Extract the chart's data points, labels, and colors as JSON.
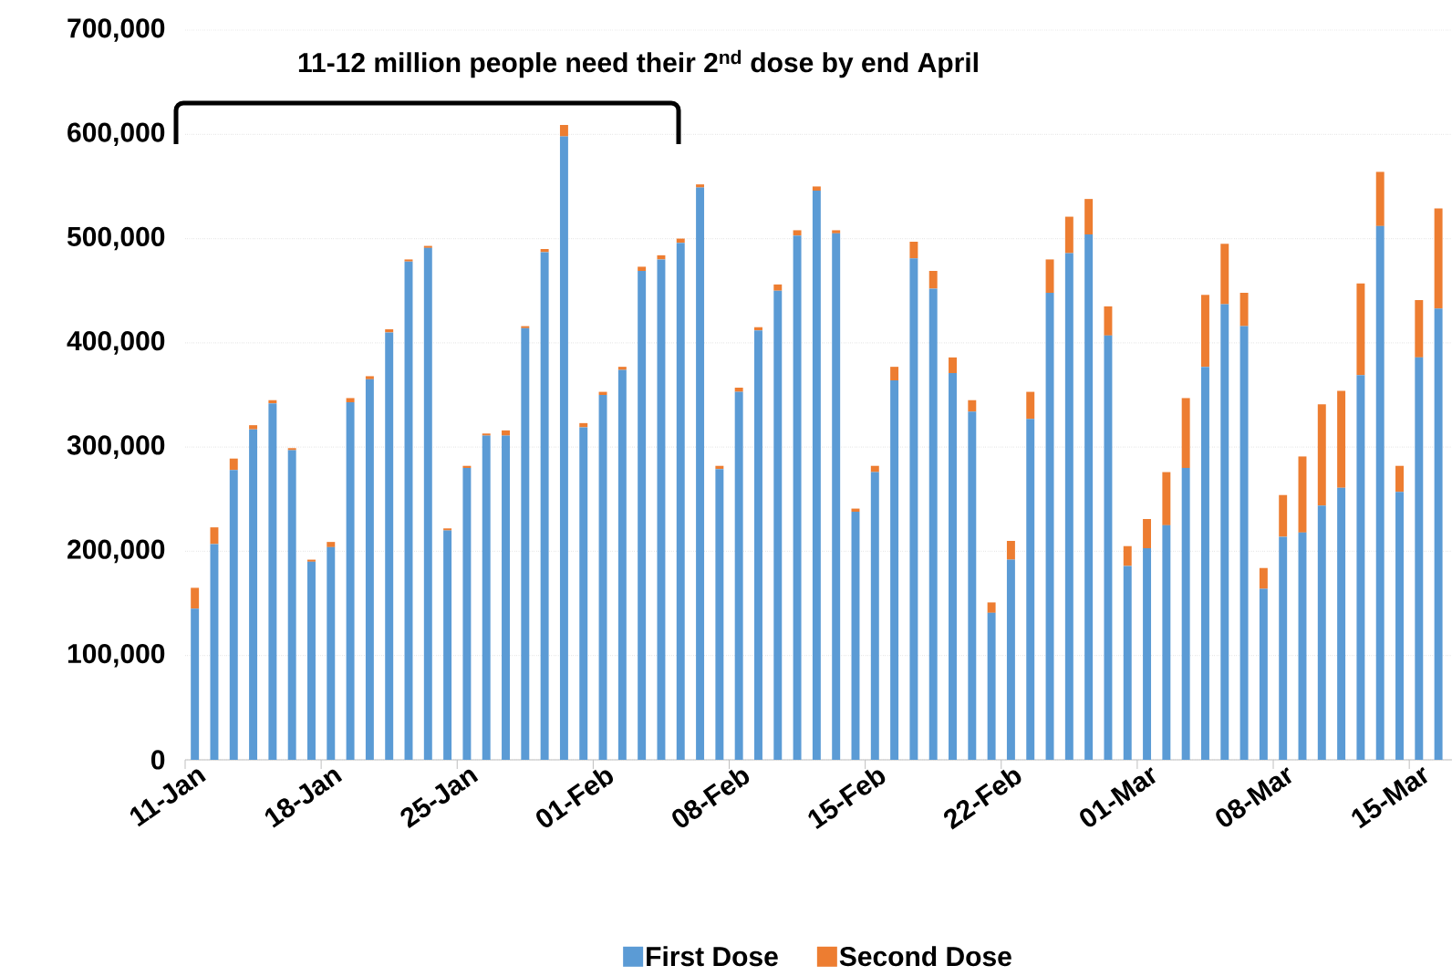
{
  "chart_data": {
    "type": "bar",
    "stacked": true,
    "categories": [
      "11-Jan",
      null,
      null,
      null,
      null,
      null,
      null,
      "18-Jan",
      null,
      null,
      null,
      null,
      null,
      null,
      "25-Jan",
      null,
      null,
      null,
      null,
      null,
      null,
      "01-Feb",
      null,
      null,
      null,
      null,
      null,
      null,
      "08-Feb",
      null,
      null,
      null,
      null,
      null,
      null,
      "15-Feb",
      null,
      null,
      null,
      null,
      null,
      null,
      "22-Feb",
      null,
      null,
      null,
      null,
      null,
      null,
      "01-Mar",
      null,
      null,
      null,
      null,
      null,
      null,
      "08-Mar",
      null,
      null,
      null,
      null,
      null,
      null,
      "15-Mar",
      null
    ],
    "series": [
      {
        "name": "First Dose",
        "color": "#5b9bd5",
        "values": [
          145000,
          207000,
          278000,
          317000,
          342000,
          297000,
          190000,
          204000,
          343000,
          365000,
          410000,
          478000,
          491000,
          220000,
          280000,
          311000,
          311000,
          414000,
          487000,
          598000,
          319000,
          350000,
          374000,
          469000,
          480000,
          496000,
          549000,
          279000,
          353000,
          412000,
          450000,
          503000,
          546000,
          505000,
          238000,
          276000,
          364000,
          481000,
          452000,
          371000,
          334000,
          141000,
          192000,
          327000,
          448000,
          486000,
          504000,
          407000,
          186000,
          203000,
          225000,
          280000,
          377000,
          437000,
          416000,
          164000,
          214000,
          218000,
          244000,
          261000,
          369000,
          512000,
          257000,
          386000,
          433000
        ]
      },
      {
        "name": "Second Dose",
        "color": "#ed7d31",
        "values": [
          20000,
          16000,
          11000,
          4000,
          3000,
          2000,
          2000,
          5000,
          4000,
          3000,
          3000,
          2000,
          2000,
          2000,
          2000,
          2000,
          5000,
          2000,
          3000,
          11000,
          4000,
          3000,
          3000,
          4000,
          4000,
          4000,
          3000,
          3000,
          4000,
          3000,
          6000,
          5000,
          4000,
          3000,
          3000,
          6000,
          13000,
          16000,
          17000,
          15000,
          11000,
          10000,
          18000,
          26000,
          32000,
          35000,
          34000,
          28000,
          19000,
          28000,
          51000,
          67000,
          69000,
          58000,
          32000,
          20000,
          40000,
          73000,
          97000,
          93000,
          88000,
          52000,
          25000,
          55000,
          96000
        ]
      }
    ],
    "ylim": [
      0,
      700000
    ],
    "yticks": [
      {
        "value": 0,
        "label": "0"
      },
      {
        "value": 100000,
        "label": "100,000"
      },
      {
        "value": 200000,
        "label": "200,000"
      },
      {
        "value": 300000,
        "label": "300,000"
      },
      {
        "value": 400000,
        "label": "400,000"
      },
      {
        "value": 500000,
        "label": "500,000"
      },
      {
        "value": 600000,
        "label": "600,000"
      },
      {
        "value": 700000,
        "label": "700,000"
      }
    ],
    "grid": "y",
    "legend": "bottom",
    "annotations": [
      "11-12 million people need their 2$^{nd}$ dose by end April"
    ]
  }
}
